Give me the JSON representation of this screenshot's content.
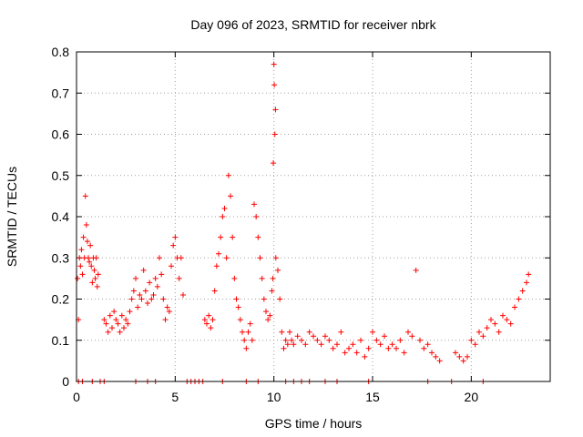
{
  "chart_data": {
    "type": "scatter",
    "title": "Day 096 of 2023, SRMTID for receiver nbrk",
    "xlabel": "GPS time / hours",
    "ylabel": "SRMTID / TECUs",
    "xlim": [
      0,
      24
    ],
    "ylim": [
      0,
      0.8
    ],
    "xticks": [
      0,
      5,
      10,
      15,
      20
    ],
    "yticks": [
      0,
      0.1,
      0.2,
      0.3,
      0.4,
      0.5,
      0.6,
      0.7,
      0.8
    ],
    "ytick_labels": [
      "0",
      "0.1",
      "0.2",
      "0.3",
      "0.4",
      "0.5",
      "0.6",
      "0.7",
      "0.8"
    ],
    "grid": true,
    "marker": "+",
    "series_color": "#ff0000",
    "series": [
      {
        "name": "SRMTID",
        "x": [
          0.05,
          0.1,
          0.15,
          0.2,
          0.25,
          0.3,
          0.35,
          0.4,
          0.45,
          0.5,
          0.55,
          0.6,
          0.65,
          0.7,
          0.75,
          0.8,
          0.85,
          0.9,
          0.95,
          1.0,
          1.05,
          1.1,
          1.4,
          1.5,
          1.6,
          1.7,
          1.8,
          1.9,
          2.0,
          2.1,
          2.2,
          2.3,
          2.4,
          2.5,
          2.6,
          2.7,
          2.8,
          2.9,
          3.0,
          3.1,
          3.2,
          3.3,
          3.4,
          3.5,
          3.6,
          3.7,
          3.8,
          3.9,
          4.0,
          4.1,
          4.2,
          4.3,
          4.4,
          4.5,
          4.6,
          4.7,
          4.8,
          4.9,
          5.0,
          5.1,
          5.2,
          5.3,
          5.4,
          6.5,
          6.6,
          6.7,
          6.8,
          6.9,
          7.0,
          7.1,
          7.2,
          7.3,
          7.4,
          7.5,
          7.6,
          7.7,
          7.8,
          7.9,
          8.0,
          8.1,
          8.2,
          8.3,
          8.4,
          8.5,
          8.6,
          8.7,
          8.8,
          8.9,
          9.0,
          9.1,
          9.2,
          9.3,
          9.4,
          9.5,
          9.6,
          9.7,
          9.8,
          9.9,
          9.95,
          9.97,
          10.0,
          10.02,
          10.05,
          10.08,
          10.1,
          10.2,
          10.3,
          10.4,
          10.5,
          10.6,
          10.7,
          10.8,
          10.9,
          11.0,
          11.2,
          11.4,
          11.6,
          11.8,
          12.0,
          12.2,
          12.4,
          12.6,
          12.8,
          13.0,
          13.2,
          13.4,
          13.6,
          13.8,
          14.0,
          14.2,
          14.4,
          14.6,
          14.8,
          15.0,
          15.2,
          15.4,
          15.6,
          15.8,
          16.0,
          16.2,
          16.4,
          16.6,
          16.8,
          17.0,
          17.2,
          17.4,
          17.6,
          17.8,
          18.0,
          18.2,
          18.4,
          19.2,
          19.4,
          19.6,
          19.8,
          20.0,
          20.2,
          20.4,
          20.6,
          20.8,
          21.0,
          21.2,
          21.4,
          21.6,
          21.8,
          22.0,
          22.2,
          22.4,
          22.6,
          22.8,
          22.9,
          0.1,
          0.3,
          0.8,
          1.2,
          1.4,
          3.0,
          3.6,
          4.0,
          5.6,
          5.8,
          6.0,
          6.2,
          6.4,
          7.4,
          8.6,
          9.2,
          10.6,
          11.0,
          11.4,
          11.8,
          12.6,
          13.2,
          14.8,
          17.8,
          19.0,
          20.6
        ],
        "y": [
          0.25,
          0.15,
          0.3,
          0.28,
          0.32,
          0.26,
          0.35,
          0.3,
          0.45,
          0.38,
          0.34,
          0.3,
          0.29,
          0.33,
          0.28,
          0.24,
          0.3,
          0.27,
          0.25,
          0.3,
          0.23,
          0.26,
          0.15,
          0.14,
          0.12,
          0.16,
          0.13,
          0.17,
          0.15,
          0.14,
          0.12,
          0.16,
          0.13,
          0.15,
          0.14,
          0.17,
          0.2,
          0.22,
          0.25,
          0.18,
          0.21,
          0.2,
          0.27,
          0.22,
          0.19,
          0.24,
          0.2,
          0.21,
          0.25,
          0.23,
          0.3,
          0.26,
          0.2,
          0.15,
          0.18,
          0.17,
          0.28,
          0.33,
          0.35,
          0.3,
          0.25,
          0.3,
          0.21,
          0.15,
          0.14,
          0.16,
          0.13,
          0.15,
          0.22,
          0.28,
          0.31,
          0.35,
          0.4,
          0.42,
          0.3,
          0.5,
          0.45,
          0.35,
          0.25,
          0.2,
          0.18,
          0.15,
          0.12,
          0.1,
          0.08,
          0.12,
          0.14,
          0.1,
          0.43,
          0.4,
          0.35,
          0.3,
          0.25,
          0.2,
          0.17,
          0.15,
          0.16,
          0.22,
          0.25,
          0.53,
          0.77,
          0.72,
          0.6,
          0.66,
          0.3,
          0.27,
          0.2,
          0.12,
          0.08,
          0.1,
          0.09,
          0.12,
          0.1,
          0.09,
          0.11,
          0.1,
          0.09,
          0.12,
          0.11,
          0.1,
          0.09,
          0.11,
          0.1,
          0.08,
          0.09,
          0.12,
          0.07,
          0.08,
          0.09,
          0.07,
          0.1,
          0.06,
          0.08,
          0.12,
          0.1,
          0.09,
          0.11,
          0.08,
          0.09,
          0.08,
          0.1,
          0.07,
          0.12,
          0.11,
          0.27,
          0.1,
          0.08,
          0.09,
          0.07,
          0.06,
          0.05,
          0.07,
          0.06,
          0.05,
          0.06,
          0.1,
          0.09,
          0.12,
          0.11,
          0.13,
          0.15,
          0.14,
          0.12,
          0.16,
          0.15,
          0.14,
          0.18,
          0.2,
          0.22,
          0.24,
          0.26,
          0.0,
          0.0,
          0.0,
          0.0,
          0.0,
          0.0,
          0.0,
          0.0,
          0.0,
          0.0,
          0.0,
          0.0,
          0.0,
          0.0,
          0.0,
          0.0,
          0.0,
          0.0,
          0.0,
          0.0,
          0.0,
          0.0,
          0.0,
          0.0,
          0.0,
          0.0
        ]
      }
    ]
  }
}
